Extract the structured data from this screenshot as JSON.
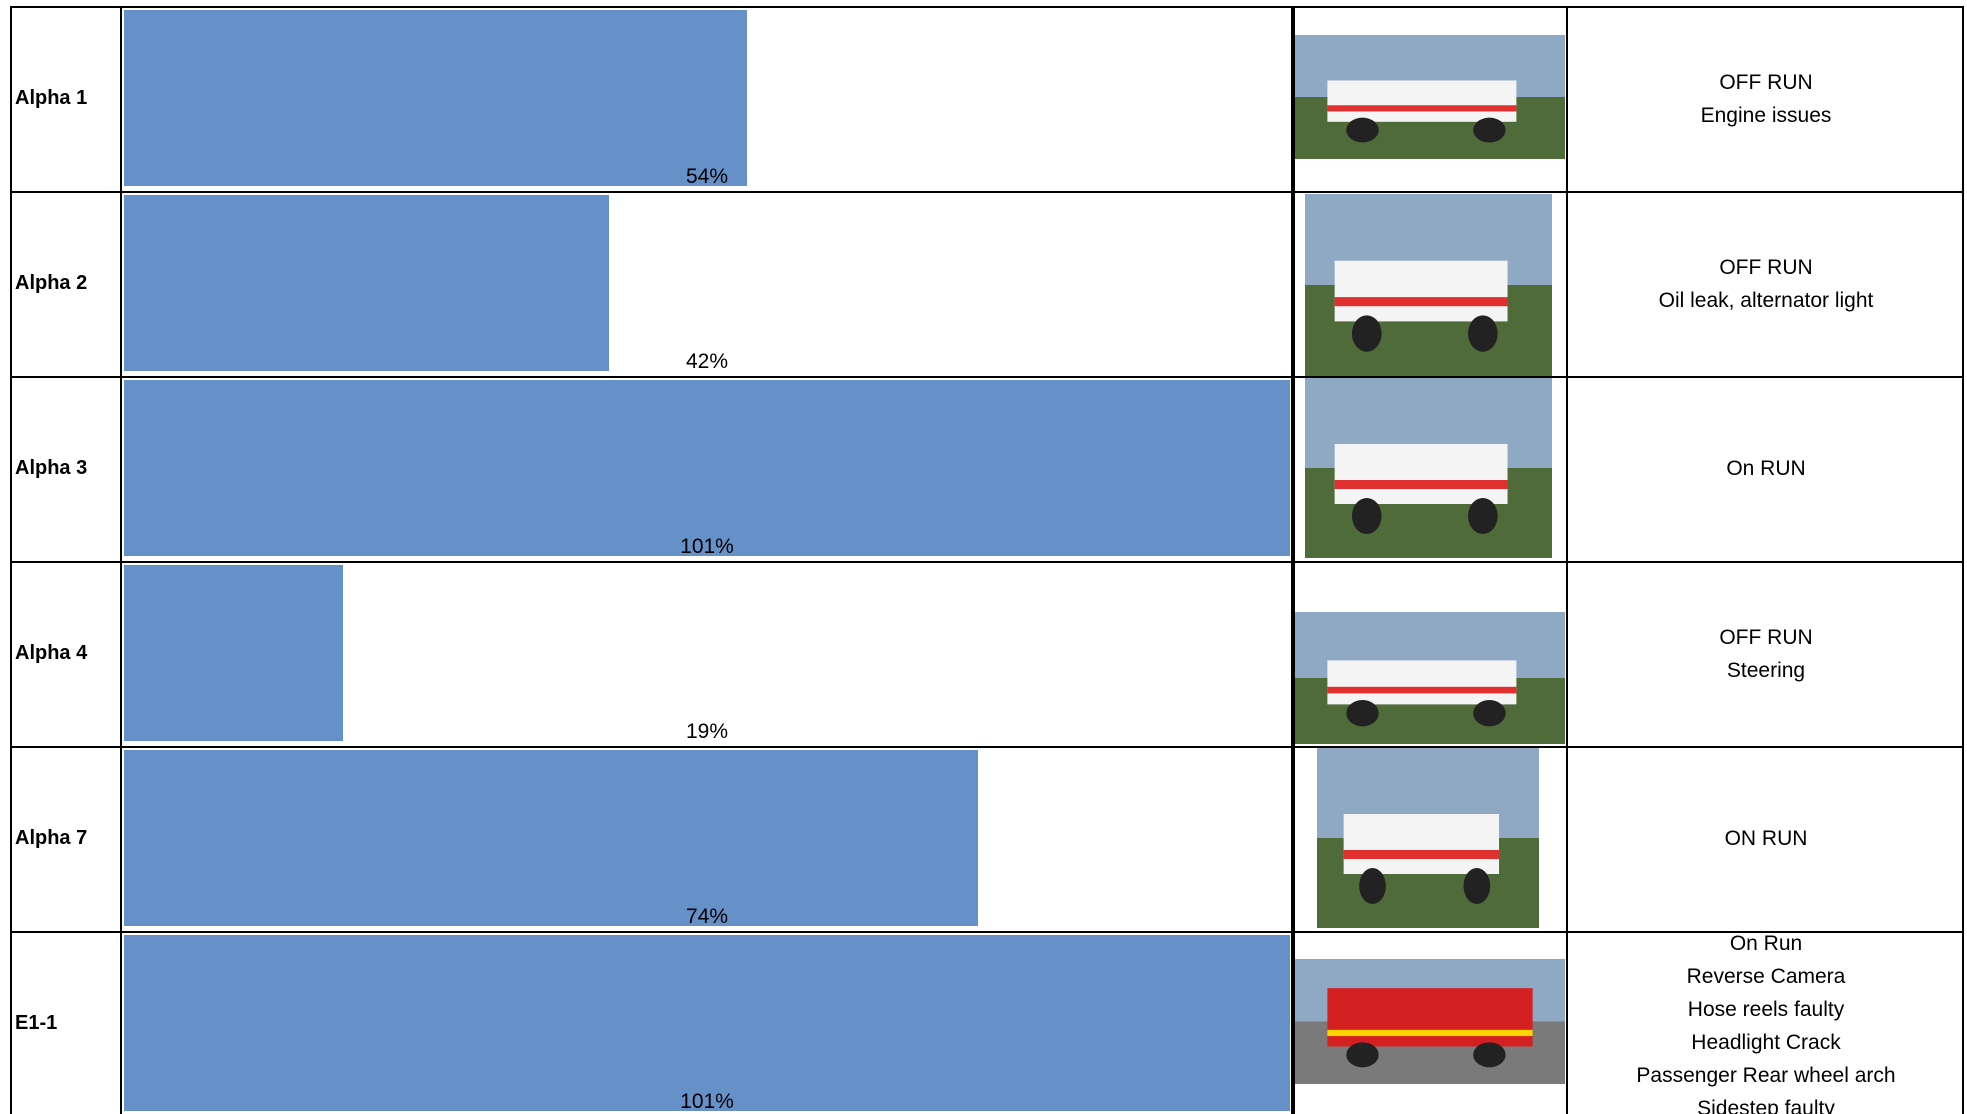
{
  "table": {
    "rows": [
      {
        "name": "Alpha 1",
        "value": 54,
        "value_label": "54%",
        "status": [
          "OFF RUN",
          "Engine issues"
        ]
      },
      {
        "name": "Alpha 2",
        "value": 42,
        "value_label": "42%",
        "status": [
          "OFF RUN",
          "Oil leak, alternator light"
        ]
      },
      {
        "name": "Alpha 3",
        "value": 101,
        "value_label": "101%",
        "status": [
          "On RUN"
        ]
      },
      {
        "name": "Alpha 4",
        "value": 19,
        "value_label": "19%",
        "status": [
          "OFF RUN",
          "Steering"
        ]
      },
      {
        "name": "Alpha 7",
        "value": 74,
        "value_label": "74%",
        "status": [
          "ON RUN"
        ]
      },
      {
        "name": "E1-1",
        "value": 101,
        "value_label": "101%",
        "status": [
          "On Run",
          "Reverse Camera",
          "Hose reels faulty",
          "Headlight Crack",
          "Passenger Rear wheel arch",
          "Sidestep faulty"
        ]
      }
    ]
  }
}
